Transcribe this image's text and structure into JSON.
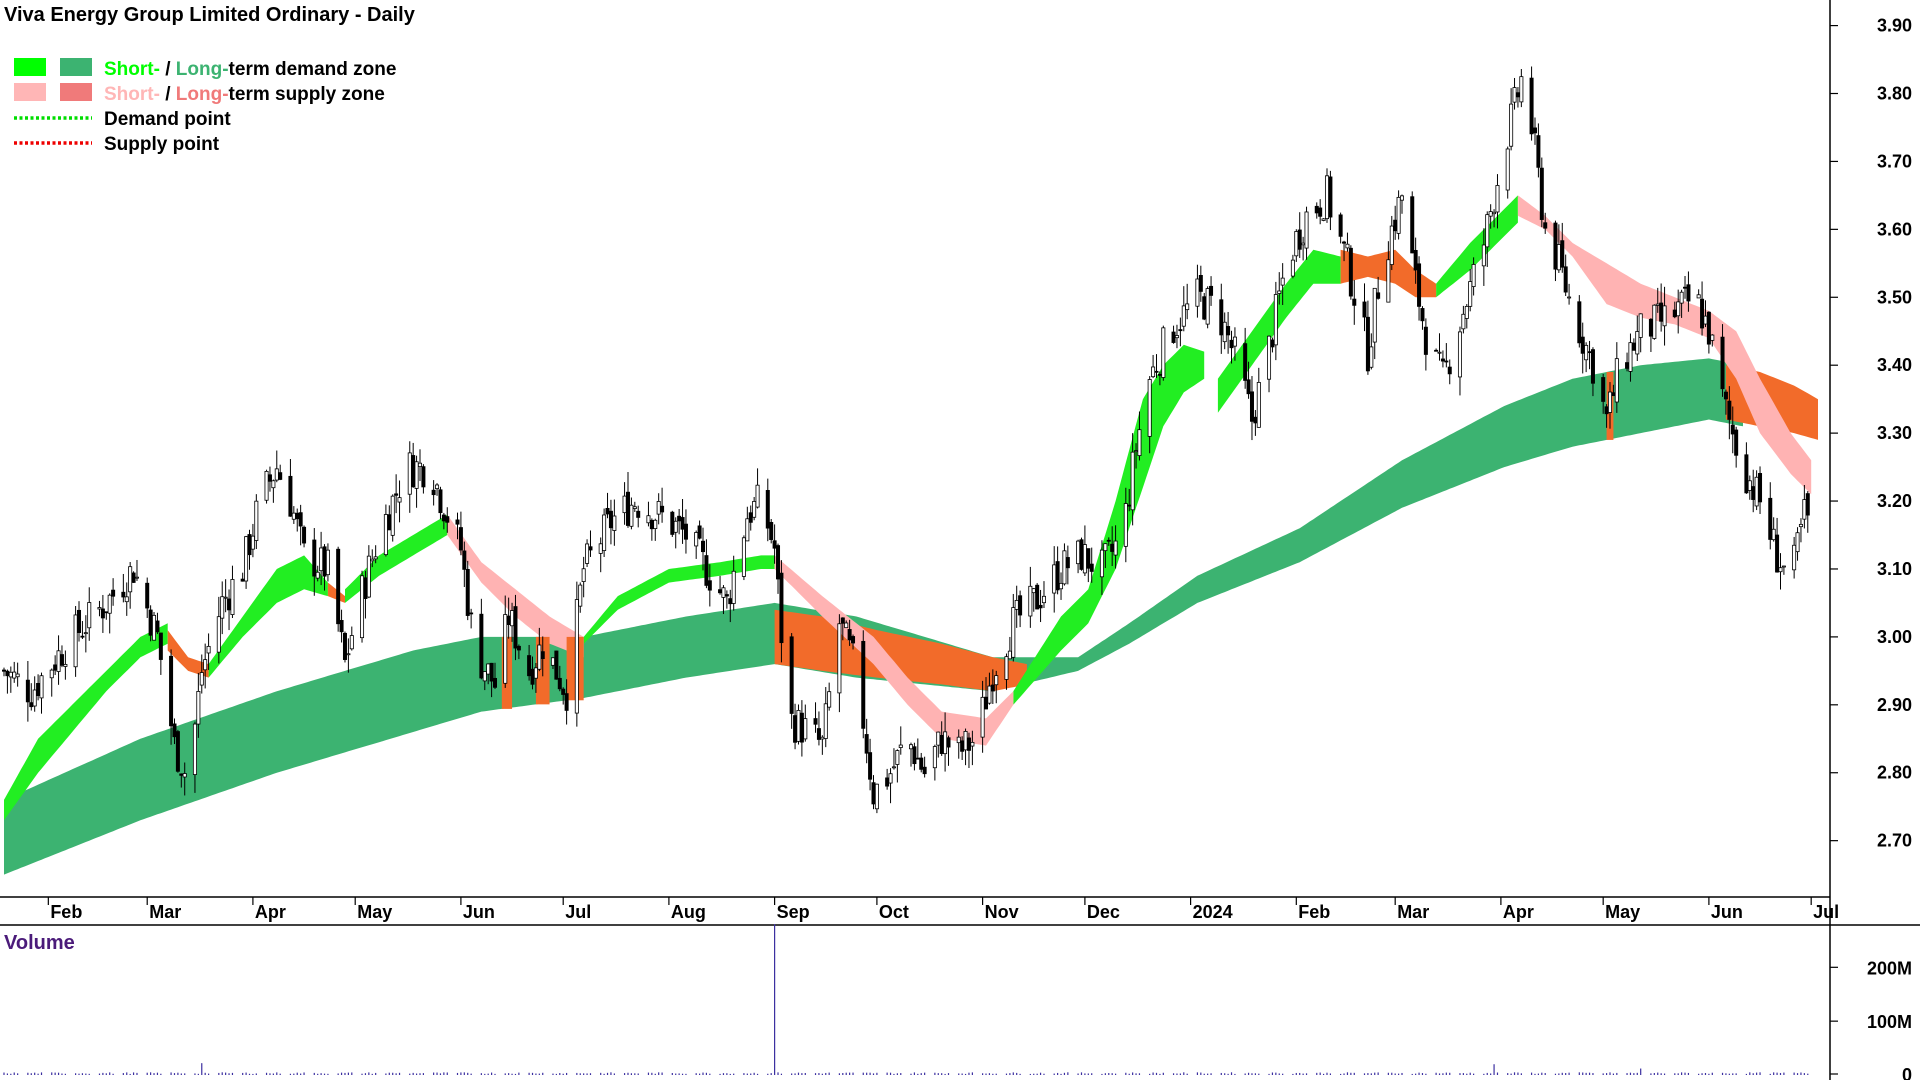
{
  "chart_data": {
    "type": "candlestick",
    "title": "Viva Energy Group Limited Ordinary - Daily",
    "legend": {
      "position": "top-left",
      "items": [
        {
          "parts": [
            {
              "text": "Short-",
              "color": "#00ff00"
            },
            {
              "text": " / ",
              "color": "#000000"
            },
            {
              "text": "Long-",
              "color": "#3cb371"
            },
            {
              "text": "term demand zone",
              "color": "#000000"
            }
          ],
          "swatches": [
            "#00ff00",
            "#3cb371"
          ]
        },
        {
          "parts": [
            {
              "text": "Short-",
              "color": "#ffb6b6"
            },
            {
              "text": " / ",
              "color": "#000000"
            },
            {
              "text": "Long-",
              "color": "#f07a7a"
            },
            {
              "text": "term supply zone",
              "color": "#000000"
            }
          ],
          "swatches": [
            "#ffb6b6",
            "#f07a7a"
          ]
        },
        {
          "parts": [
            {
              "text": "Demand point",
              "color": "#000000"
            }
          ],
          "line": "#00dd00"
        },
        {
          "parts": [
            {
              "text": "Supply point",
              "color": "#000000"
            }
          ],
          "line": "#ee0000"
        }
      ]
    },
    "price_axis": {
      "min": 2.62,
      "max": 3.92,
      "ticks": [
        "2.70",
        "2.80",
        "2.90",
        "3.00",
        "3.10",
        "3.20",
        "3.30",
        "3.40",
        "3.50",
        "3.60",
        "3.70",
        "3.80",
        "3.90"
      ]
    },
    "x_axis": {
      "months": [
        {
          "label": "Feb",
          "day": 13
        },
        {
          "label": "Mar",
          "day": 42
        },
        {
          "label": "Apr",
          "day": 73
        },
        {
          "label": "May",
          "day": 103
        },
        {
          "label": "Jun",
          "day": 134
        },
        {
          "label": "Jul",
          "day": 164
        },
        {
          "label": "Aug",
          "day": 195
        },
        {
          "label": "Sep",
          "day": 226
        },
        {
          "label": "Oct",
          "day": 256
        },
        {
          "label": "Nov",
          "day": 287
        },
        {
          "label": "Dec",
          "day": 317
        },
        {
          "label": "2024",
          "day": 348
        },
        {
          "label": "Feb",
          "day": 379
        },
        {
          "label": "Mar",
          "day": 408
        },
        {
          "label": "Apr",
          "day": 439
        },
        {
          "label": "May",
          "day": 469
        },
        {
          "label": "Jun",
          "day": 500
        },
        {
          "label": "Jul",
          "day": 530
        }
      ],
      "day_range": [
        0,
        532
      ]
    },
    "price_keypoints": [
      [
        0,
        2.95
      ],
      [
        8,
        2.92
      ],
      [
        20,
        3.0
      ],
      [
        30,
        3.05
      ],
      [
        38,
        3.1
      ],
      [
        45,
        3.0
      ],
      [
        50,
        2.84
      ],
      [
        54,
        2.79
      ],
      [
        58,
        2.95
      ],
      [
        64,
        3.05
      ],
      [
        70,
        3.1
      ],
      [
        75,
        3.2
      ],
      [
        80,
        3.25
      ],
      [
        84,
        3.2
      ],
      [
        88,
        3.12
      ],
      [
        95,
        3.1
      ],
      [
        100,
        2.96
      ],
      [
        104,
        3.05
      ],
      [
        110,
        3.15
      ],
      [
        118,
        3.25
      ],
      [
        125,
        3.25
      ],
      [
        130,
        3.18
      ],
      [
        134,
        3.13
      ],
      [
        138,
        2.98
      ],
      [
        144,
        2.93
      ],
      [
        148,
        3.03
      ],
      [
        154,
        2.95
      ],
      [
        158,
        2.99
      ],
      [
        165,
        2.92
      ],
      [
        170,
        3.1
      ],
      [
        178,
        3.17
      ],
      [
        185,
        3.2
      ],
      [
        195,
        3.17
      ],
      [
        200,
        3.15
      ],
      [
        206,
        3.1
      ],
      [
        212,
        3.05
      ],
      [
        218,
        3.18
      ],
      [
        222,
        3.2
      ],
      [
        226,
        3.13
      ],
      [
        230,
        2.88
      ],
      [
        236,
        2.86
      ],
      [
        240,
        2.84
      ],
      [
        245,
        3.02
      ],
      [
        250,
        2.95
      ],
      [
        255,
        2.77
      ],
      [
        260,
        2.8
      ],
      [
        265,
        2.85
      ],
      [
        270,
        2.8
      ],
      [
        275,
        2.85
      ],
      [
        280,
        2.83
      ],
      [
        285,
        2.85
      ],
      [
        290,
        2.95
      ],
      [
        296,
        3.02
      ],
      [
        302,
        3.05
      ],
      [
        310,
        3.1
      ],
      [
        316,
        3.12
      ],
      [
        322,
        3.1
      ],
      [
        328,
        3.15
      ],
      [
        332,
        3.28
      ],
      [
        336,
        3.38
      ],
      [
        342,
        3.45
      ],
      [
        350,
        3.5
      ],
      [
        356,
        3.48
      ],
      [
        362,
        3.4
      ],
      [
        366,
        3.32
      ],
      [
        370,
        3.4
      ],
      [
        376,
        3.55
      ],
      [
        382,
        3.62
      ],
      [
        388,
        3.65
      ],
      [
        394,
        3.55
      ],
      [
        400,
        3.42
      ],
      [
        404,
        3.55
      ],
      [
        410,
        3.65
      ],
      [
        414,
        3.52
      ],
      [
        418,
        3.42
      ],
      [
        422,
        3.38
      ],
      [
        428,
        3.48
      ],
      [
        434,
        3.58
      ],
      [
        440,
        3.72
      ],
      [
        445,
        3.82
      ],
      [
        448,
        3.75
      ],
      [
        452,
        3.6
      ],
      [
        456,
        3.55
      ],
      [
        460,
        3.48
      ],
      [
        466,
        3.4
      ],
      [
        470,
        3.32
      ],
      [
        474,
        3.4
      ],
      [
        480,
        3.45
      ],
      [
        488,
        3.47
      ],
      [
        496,
        3.5
      ],
      [
        500,
        3.45
      ],
      [
        504,
        3.35
      ],
      [
        510,
        3.25
      ],
      [
        515,
        3.2
      ],
      [
        520,
        3.12
      ],
      [
        524,
        3.08
      ],
      [
        528,
        3.18
      ],
      [
        531,
        3.16
      ]
    ],
    "zones": {
      "long_term_demand": {
        "days": [
          0,
          40,
          80,
          120,
          140,
          170,
          200,
          226,
          250,
          290,
          315,
          330,
          350,
          380,
          410,
          440,
          460,
          480,
          500,
          510
        ],
        "top": [
          2.76,
          2.85,
          2.92,
          2.98,
          3.0,
          3.0,
          3.03,
          3.05,
          3.03,
          2.97,
          2.97,
          3.02,
          3.09,
          3.16,
          3.26,
          3.34,
          3.38,
          3.4,
          3.41,
          3.4
        ],
        "bottom": [
          2.65,
          2.73,
          2.8,
          2.86,
          2.89,
          2.91,
          2.94,
          2.96,
          2.94,
          2.92,
          2.95,
          2.99,
          3.05,
          3.11,
          3.19,
          3.25,
          3.28,
          3.3,
          3.32,
          3.31
        ]
      },
      "long_term_supply": [
        {
          "days": [
            226,
            240,
            256,
            275,
            290,
            300
          ],
          "top": [
            3.04,
            3.03,
            3.01,
            2.99,
            2.97,
            2.96
          ],
          "bottom": [
            2.96,
            2.95,
            2.94,
            2.93,
            2.92,
            2.93
          ]
        },
        {
          "days": [
            505,
            515,
            525,
            532
          ],
          "top": [
            3.4,
            3.39,
            3.37,
            3.35
          ],
          "bottom": [
            3.32,
            3.31,
            3.3,
            3.29
          ]
        }
      ],
      "short_term_demand": [
        {
          "days": [
            0,
            10,
            20,
            30,
            40,
            48
          ],
          "top": [
            2.76,
            2.85,
            2.9,
            2.95,
            3.0,
            3.02
          ],
          "bottom": [
            2.73,
            2.8,
            2.86,
            2.92,
            2.97,
            2.99
          ]
        },
        {
          "days": [
            60,
            70,
            80,
            88,
            95
          ],
          "top": [
            2.96,
            3.03,
            3.1,
            3.12,
            3.08
          ],
          "bottom": [
            2.94,
            3.0,
            3.05,
            3.07,
            3.06
          ]
        },
        {
          "days": [
            100,
            110,
            120,
            130
          ],
          "top": [
            3.07,
            3.12,
            3.15,
            3.18
          ],
          "bottom": [
            3.05,
            3.09,
            3.12,
            3.15
          ]
        },
        {
          "days": [
            170,
            180,
            195,
            210,
            222,
            226
          ],
          "top": [
            3.0,
            3.06,
            3.1,
            3.11,
            3.12,
            3.12
          ],
          "bottom": [
            2.99,
            3.04,
            3.08,
            3.09,
            3.1,
            3.1
          ]
        },
        {
          "days": [
            296,
            310,
            318,
            326,
            334,
            340,
            346,
            352
          ],
          "top": [
            2.92,
            3.03,
            3.07,
            3.2,
            3.35,
            3.4,
            3.43,
            3.42
          ],
          "bottom": [
            2.9,
            2.98,
            3.02,
            3.1,
            3.22,
            3.31,
            3.36,
            3.38
          ]
        },
        {
          "days": [
            356,
            366,
            376,
            384,
            392
          ],
          "top": [
            3.38,
            3.45,
            3.52,
            3.57,
            3.56
          ],
          "bottom": [
            3.33,
            3.4,
            3.47,
            3.52,
            3.52
          ]
        },
        {
          "days": [
            420,
            430,
            438,
            444
          ],
          "top": [
            3.52,
            3.58,
            3.62,
            3.65
          ],
          "bottom": [
            3.5,
            3.54,
            3.58,
            3.61
          ]
        }
      ],
      "short_term_supply": [
        {
          "days": [
            48,
            54,
            60
          ],
          "top": [
            3.01,
            2.97,
            2.96
          ],
          "bottom": [
            2.98,
            2.95,
            2.94
          ]
        },
        {
          "days": [
            95,
            100
          ],
          "top": [
            3.08,
            3.06
          ],
          "bottom": [
            3.06,
            3.05
          ]
        },
        {
          "days": [
            130,
            140,
            150,
            160,
            170
          ],
          "top": [
            3.18,
            3.11,
            3.07,
            3.03,
            3.0
          ],
          "bottom": [
            3.15,
            3.08,
            3.03,
            2.99,
            2.97
          ]
        },
        {
          "days": [
            226,
            240,
            255,
            265,
            275,
            288,
            296
          ],
          "top": [
            3.12,
            3.06,
            3.0,
            2.94,
            2.89,
            2.88,
            2.92
          ],
          "bottom": [
            3.1,
            3.03,
            2.96,
            2.9,
            2.85,
            2.84,
            2.9
          ]
        },
        {
          "days": [
            392,
            400,
            408,
            414,
            420
          ],
          "top": [
            3.57,
            3.56,
            3.57,
            3.54,
            3.52
          ],
          "bottom": [
            3.52,
            3.53,
            3.52,
            3.5,
            3.5
          ]
        },
        {
          "days": [
            444,
            452,
            460,
            470,
            480,
            490,
            500,
            508,
            515,
            524,
            530
          ],
          "top": [
            3.65,
            3.62,
            3.58,
            3.55,
            3.52,
            3.5,
            3.48,
            3.45,
            3.38,
            3.3,
            3.26
          ],
          "bottom": [
            3.62,
            3.6,
            3.56,
            3.49,
            3.47,
            3.46,
            3.44,
            3.38,
            3.3,
            3.24,
            3.21
          ]
        }
      ]
    },
    "volume": {
      "label": "Volume",
      "ticks": [
        "0",
        "100M",
        "200M"
      ],
      "max": 260,
      "spikes": [
        [
          58,
          22
        ],
        [
          226,
          280
        ],
        [
          229,
          38
        ],
        [
          517,
          38
        ],
        [
          437,
          20
        ],
        [
          480,
          12
        ]
      ]
    }
  }
}
